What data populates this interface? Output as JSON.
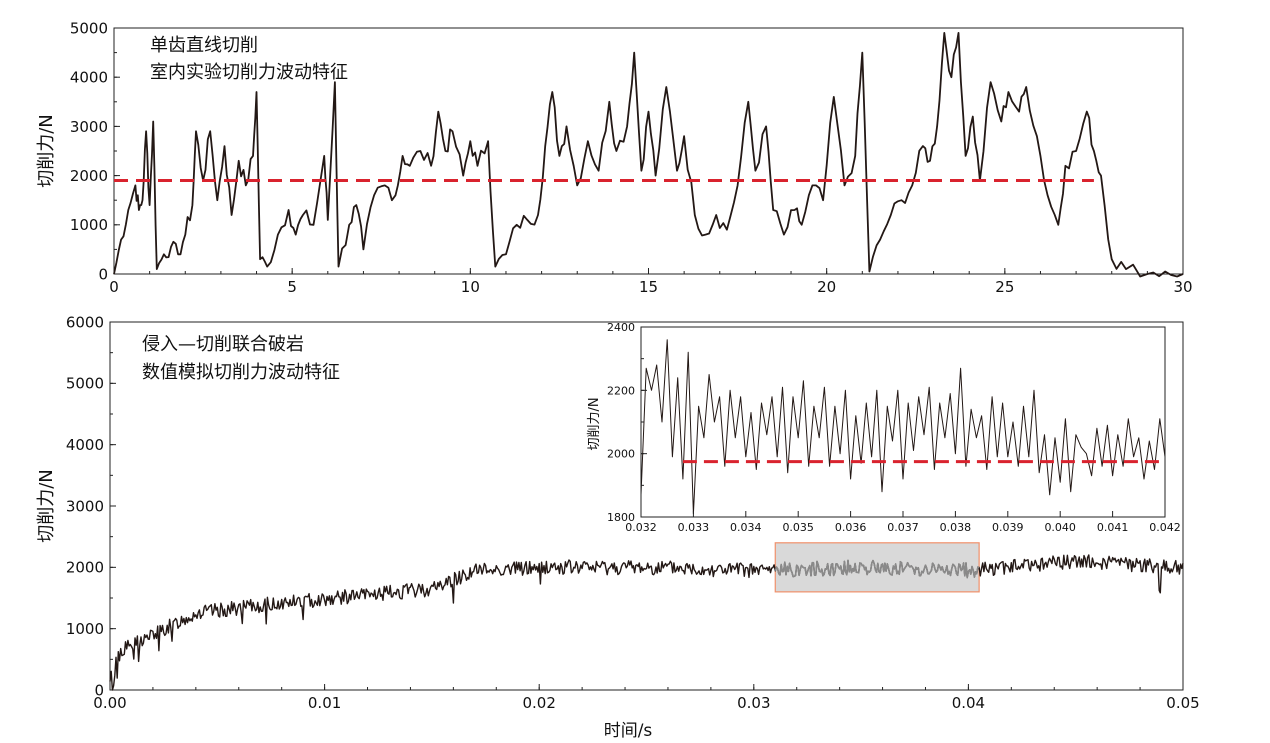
{
  "chart_data": [
    {
      "id": "top",
      "type": "line",
      "annotation_lines": [
        "单齿直线切削",
        "室内实验切削力波动特征"
      ],
      "ylabel": "切削力/N",
      "xlabel": "",
      "xlim": [
        0,
        30
      ],
      "ylim": [
        0,
        5000
      ],
      "xticks": [
        "0",
        "5",
        "10",
        "15",
        "20",
        "25",
        "30"
      ],
      "yticks": [
        "0",
        "1000",
        "2000",
        "3000",
        "4000",
        "5000"
      ],
      "mean_line": {
        "value": 1900,
        "x_range": [
          0,
          27.5
        ],
        "color": "#d9232e"
      },
      "series": [
        {
          "color": "#231815",
          "points": [
            [
              0,
              0
            ],
            [
              0.2,
              700
            ],
            [
              0.4,
              1300
            ],
            [
              0.6,
              1800
            ],
            [
              0.7,
              1300
            ],
            [
              0.8,
              1500
            ],
            [
              0.9,
              2900
            ],
            [
              1.0,
              1400
            ],
            [
              1.1,
              3100
            ],
            [
              1.2,
              100
            ],
            [
              1.4,
              400
            ],
            [
              1.6,
              550
            ],
            [
              1.8,
              400
            ],
            [
              2.0,
              800
            ],
            [
              2.2,
              1400
            ],
            [
              2.3,
              2900
            ],
            [
              2.5,
              1900
            ],
            [
              2.7,
              2900
            ],
            [
              2.9,
              1500
            ],
            [
              3.1,
              2600
            ],
            [
              3.3,
              1200
            ],
            [
              3.5,
              2300
            ],
            [
              3.7,
              1800
            ],
            [
              3.9,
              2400
            ],
            [
              4.0,
              3700
            ],
            [
              4.1,
              300
            ],
            [
              4.3,
              150
            ],
            [
              4.6,
              800
            ],
            [
              4.9,
              1300
            ],
            [
              5.1,
              800
            ],
            [
              5.3,
              1200
            ],
            [
              5.6,
              1000
            ],
            [
              5.9,
              2400
            ],
            [
              6.0,
              1100
            ],
            [
              6.2,
              3900
            ],
            [
              6.3,
              150
            ],
            [
              6.6,
              1000
            ],
            [
              6.8,
              1400
            ],
            [
              7.0,
              500
            ],
            [
              7.3,
              1600
            ],
            [
              7.6,
              1800
            ],
            [
              7.9,
              1600
            ],
            [
              8.1,
              2400
            ],
            [
              8.3,
              2200
            ],
            [
              8.6,
              2500
            ],
            [
              8.9,
              2200
            ],
            [
              9.1,
              3300
            ],
            [
              9.3,
              2500
            ],
            [
              9.5,
              2900
            ],
            [
              9.8,
              2000
            ],
            [
              10.0,
              2700
            ],
            [
              10.2,
              2200
            ],
            [
              10.5,
              2700
            ],
            [
              10.7,
              150
            ],
            [
              11.0,
              400
            ],
            [
              11.3,
              1000
            ],
            [
              11.6,
              1100
            ],
            [
              11.9,
              1200
            ],
            [
              12.1,
              2600
            ],
            [
              12.3,
              3700
            ],
            [
              12.5,
              2400
            ],
            [
              12.7,
              3000
            ],
            [
              13.0,
              1800
            ],
            [
              13.3,
              2700
            ],
            [
              13.6,
              2100
            ],
            [
              13.9,
              3500
            ],
            [
              14.1,
              2500
            ],
            [
              14.4,
              3000
            ],
            [
              14.6,
              4500
            ],
            [
              14.8,
              2100
            ],
            [
              15.0,
              3300
            ],
            [
              15.2,
              2000
            ],
            [
              15.5,
              3800
            ],
            [
              15.8,
              2100
            ],
            [
              16.0,
              2800
            ],
            [
              16.3,
              1200
            ],
            [
              16.6,
              800
            ],
            [
              16.9,
              1200
            ],
            [
              17.2,
              900
            ],
            [
              17.5,
              1800
            ],
            [
              17.8,
              3500
            ],
            [
              18.0,
              2100
            ],
            [
              18.3,
              3000
            ],
            [
              18.5,
              1300
            ],
            [
              18.8,
              800
            ],
            [
              19.1,
              1300
            ],
            [
              19.3,
              1000
            ],
            [
              19.6,
              1800
            ],
            [
              19.9,
              1500
            ],
            [
              20.2,
              3600
            ],
            [
              20.5,
              1800
            ],
            [
              20.8,
              2400
            ],
            [
              21.0,
              4500
            ],
            [
              21.2,
              50
            ],
            [
              21.5,
              700
            ],
            [
              21.8,
              1200
            ],
            [
              22.1,
              1500
            ],
            [
              22.4,
              1800
            ],
            [
              22.7,
              2600
            ],
            [
              22.9,
              2300
            ],
            [
              23.1,
              3000
            ],
            [
              23.3,
              4900
            ],
            [
              23.5,
              4000
            ],
            [
              23.7,
              4900
            ],
            [
              23.9,
              2400
            ],
            [
              24.1,
              3200
            ],
            [
              24.3,
              1900
            ],
            [
              24.6,
              3900
            ],
            [
              24.9,
              3100
            ],
            [
              25.1,
              3700
            ],
            [
              25.4,
              3300
            ],
            [
              25.6,
              3800
            ],
            [
              25.9,
              2800
            ],
            [
              26.2,
              1600
            ],
            [
              26.5,
              1000
            ],
            [
              26.7,
              2200
            ],
            [
              27.0,
              2500
            ],
            [
              27.3,
              3300
            ],
            [
              27.5,
              2500
            ],
            [
              27.7,
              2000
            ],
            [
              28.0,
              300
            ],
            [
              28.4,
              100
            ],
            [
              29.0,
              0
            ],
            [
              29.5,
              50
            ],
            [
              30,
              0
            ]
          ]
        }
      ]
    },
    {
      "id": "bottom",
      "type": "line",
      "annotation_lines": [
        "侵入—切削联合破岩",
        "数值模拟切削力波动特征"
      ],
      "ylabel": "切削力/N",
      "xlabel": "时间/s",
      "xlim": [
        0,
        0.05
      ],
      "ylim": [
        0,
        6000
      ],
      "xticks": [
        "0.00",
        "0.01",
        "0.02",
        "0.03",
        "0.04",
        "0.05"
      ],
      "yticks": [
        "0",
        "1000",
        "2000",
        "3000",
        "4000",
        "5000",
        "6000"
      ],
      "highlight_range": {
        "x": [
          0.031,
          0.0405
        ],
        "y": [
          1600,
          2400
        ],
        "fill": "#d9d9d9",
        "stroke": "#f0906a"
      },
      "series": [
        {
          "color": "#231815",
          "trend_points": [
            [
              0,
              0
            ],
            [
              0.0005,
              650
            ],
            [
              0.002,
              900
            ],
            [
              0.004,
              1250
            ],
            [
              0.008,
              1420
            ],
            [
              0.012,
              1550
            ],
            [
              0.015,
              1650
            ],
            [
              0.017,
              1950
            ],
            [
              0.02,
              2000
            ],
            [
              0.025,
              2000
            ],
            [
              0.03,
              1950
            ],
            [
              0.035,
              2000
            ],
            [
              0.04,
              1950
            ],
            [
              0.045,
              2100
            ],
            [
              0.05,
              2000
            ]
          ],
          "noise_amplitude": 120
        }
      ]
    },
    {
      "id": "inset",
      "type": "line",
      "ylabel": "切削力/N",
      "xlabel": "",
      "xlim": [
        0.032,
        0.042
      ],
      "ylim": [
        1800,
        2400
      ],
      "xticks": [
        "0.032",
        "0.033",
        "0.034",
        "0.035",
        "0.036",
        "0.037",
        "0.038",
        "0.039",
        "0.040",
        "0.041",
        "0.042"
      ],
      "yticks": [
        "1800",
        "2000",
        "2200",
        "2400"
      ],
      "mean_line": {
        "value": 1975,
        "x_range": [
          0.0328,
          0.042
        ],
        "color": "#d9232e"
      },
      "series": [
        {
          "color": "#231815",
          "points": [
            [
              0.032,
              1870
            ],
            [
              0.0321,
              2270
            ],
            [
              0.0322,
              2200
            ],
            [
              0.0323,
              2280
            ],
            [
              0.0324,
              2100
            ],
            [
              0.0325,
              2360
            ],
            [
              0.0326,
              1990
            ],
            [
              0.0327,
              2240
            ],
            [
              0.0328,
              1920
            ],
            [
              0.0329,
              2320
            ],
            [
              0.033,
              1810
            ],
            [
              0.0331,
              2150
            ],
            [
              0.0332,
              2050
            ],
            [
              0.0333,
              2250
            ],
            [
              0.0334,
              2100
            ],
            [
              0.0335,
              2180
            ],
            [
              0.0336,
              1960
            ],
            [
              0.0337,
              2200
            ],
            [
              0.0338,
              2050
            ],
            [
              0.0339,
              2180
            ],
            [
              0.034,
              1990
            ],
            [
              0.0341,
              2130
            ],
            [
              0.0342,
              1950
            ],
            [
              0.0343,
              2160
            ],
            [
              0.0344,
              2060
            ],
            [
              0.0345,
              2180
            ],
            [
              0.0346,
              1990
            ],
            [
              0.0347,
              2210
            ],
            [
              0.0348,
              1940
            ],
            [
              0.0349,
              2180
            ],
            [
              0.035,
              2050
            ],
            [
              0.0351,
              2230
            ],
            [
              0.0352,
              1960
            ],
            [
              0.0353,
              2150
            ],
            [
              0.0354,
              2050
            ],
            [
              0.0355,
              2210
            ],
            [
              0.0356,
              1960
            ],
            [
              0.0357,
              2150
            ],
            [
              0.0358,
              2000
            ],
            [
              0.0359,
              2200
            ],
            [
              0.036,
              1920
            ],
            [
              0.0361,
              2120
            ],
            [
              0.0362,
              1970
            ],
            [
              0.0363,
              2160
            ],
            [
              0.0364,
              1990
            ],
            [
              0.0365,
              2200
            ],
            [
              0.0366,
              1880
            ],
            [
              0.0367,
              2150
            ],
            [
              0.0368,
              2040
            ],
            [
              0.0369,
              2200
            ],
            [
              0.037,
              1920
            ],
            [
              0.0371,
              2160
            ],
            [
              0.0372,
              2010
            ],
            [
              0.0373,
              2180
            ],
            [
              0.0374,
              2060
            ],
            [
              0.0375,
              2210
            ],
            [
              0.0376,
              1950
            ],
            [
              0.0377,
              2160
            ],
            [
              0.0378,
              2050
            ],
            [
              0.0379,
              2190
            ],
            [
              0.038,
              2000
            ],
            [
              0.0381,
              2270
            ],
            [
              0.0382,
              1960
            ],
            [
              0.0383,
              2140
            ],
            [
              0.0384,
              2050
            ],
            [
              0.0385,
              2120
            ],
            [
              0.0386,
              1950
            ],
            [
              0.0387,
              2180
            ],
            [
              0.0388,
              1990
            ],
            [
              0.0389,
              2160
            ],
            [
              0.039,
              1990
            ],
            [
              0.0391,
              2100
            ],
            [
              0.0392,
              1960
            ],
            [
              0.0393,
              2150
            ],
            [
              0.0394,
              1990
            ],
            [
              0.0395,
              2200
            ],
            [
              0.0396,
              1940
            ],
            [
              0.0397,
              2060
            ],
            [
              0.0398,
              1870
            ],
            [
              0.0399,
              2050
            ],
            [
              0.04,
              1910
            ],
            [
              0.0401,
              2110
            ],
            [
              0.0402,
              1880
            ],
            [
              0.0403,
              2060
            ],
            [
              0.0404,
              2020
            ],
            [
              0.0405,
              2000
            ],
            [
              0.0406,
              1930
            ],
            [
              0.0407,
              2080
            ],
            [
              0.0408,
              1960
            ],
            [
              0.0409,
              2090
            ],
            [
              0.041,
              1930
            ],
            [
              0.0411,
              2060
            ],
            [
              0.0412,
              1960
            ],
            [
              0.0413,
              2110
            ],
            [
              0.0414,
              1990
            ],
            [
              0.0415,
              2050
            ],
            [
              0.0416,
              1920
            ],
            [
              0.0417,
              2040
            ],
            [
              0.0418,
              1950
            ],
            [
              0.0419,
              2110
            ],
            [
              0.042,
              1990
            ]
          ]
        }
      ]
    }
  ]
}
